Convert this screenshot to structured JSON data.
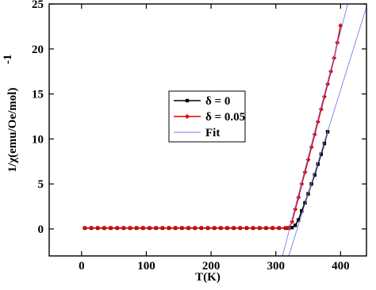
{
  "chart_data": {
    "type": "line",
    "xlabel": "T(K)",
    "ylabel": "1/χ(emu/Oe/mol)",
    "ylabel_exponent": "-1",
    "xlim": [
      -50,
      440
    ],
    "ylim": [
      -3,
      25
    ],
    "xticks": [
      0,
      100,
      200,
      300,
      400
    ],
    "yticks": [
      0,
      5,
      10,
      15,
      20,
      25
    ],
    "series": [
      {
        "name": "δ = 0",
        "color": "#000000",
        "marker": "square",
        "x": [
          5,
          15,
          25,
          35,
          45,
          55,
          65,
          75,
          85,
          95,
          105,
          115,
          125,
          135,
          145,
          155,
          165,
          175,
          185,
          195,
          205,
          215,
          225,
          235,
          245,
          255,
          265,
          275,
          285,
          295,
          305,
          315,
          320,
          325,
          330,
          335,
          340,
          345,
          350,
          355,
          360,
          365,
          370,
          375,
          380
        ],
        "values": [
          0.1,
          0.1,
          0.1,
          0.1,
          0.1,
          0.1,
          0.1,
          0.1,
          0.1,
          0.1,
          0.1,
          0.1,
          0.1,
          0.1,
          0.1,
          0.1,
          0.1,
          0.1,
          0.1,
          0.1,
          0.1,
          0.1,
          0.1,
          0.1,
          0.1,
          0.1,
          0.1,
          0.1,
          0.1,
          0.1,
          0.1,
          0.1,
          0.1,
          0.15,
          0.4,
          1.0,
          2.0,
          2.9,
          3.9,
          5.0,
          6.0,
          7.2,
          8.3,
          9.5,
          10.8
        ]
      },
      {
        "name": "δ = 0.05",
        "color": "#e00000",
        "marker": "diamond",
        "x": [
          5,
          15,
          25,
          35,
          45,
          55,
          65,
          75,
          85,
          95,
          105,
          115,
          125,
          135,
          145,
          155,
          165,
          175,
          185,
          195,
          205,
          215,
          225,
          235,
          245,
          255,
          265,
          275,
          285,
          295,
          305,
          315,
          320,
          325,
          330,
          335,
          340,
          345,
          350,
          355,
          360,
          365,
          370,
          375,
          380,
          385,
          390,
          395,
          400
        ],
        "values": [
          0.1,
          0.1,
          0.1,
          0.1,
          0.1,
          0.1,
          0.1,
          0.1,
          0.1,
          0.1,
          0.1,
          0.1,
          0.1,
          0.1,
          0.1,
          0.1,
          0.1,
          0.1,
          0.1,
          0.1,
          0.1,
          0.1,
          0.1,
          0.1,
          0.1,
          0.1,
          0.1,
          0.1,
          0.1,
          0.1,
          0.1,
          0.1,
          0.1,
          0.8,
          2.2,
          3.5,
          5.0,
          6.3,
          7.7,
          9.1,
          10.5,
          11.9,
          13.3,
          14.7,
          16.1,
          17.5,
          19.0,
          20.7,
          22.6
        ]
      },
      {
        "name": "Fit",
        "color": "#7b7bf0",
        "marker": "none",
        "x": [
          310,
          411
        ],
        "values": [
          -3.1,
          25
        ]
      },
      {
        "color": "#7b7bf0",
        "marker": "none",
        "x": [
          320,
          441
        ],
        "values": [
          -3.0,
          24.9
        ]
      }
    ]
  }
}
